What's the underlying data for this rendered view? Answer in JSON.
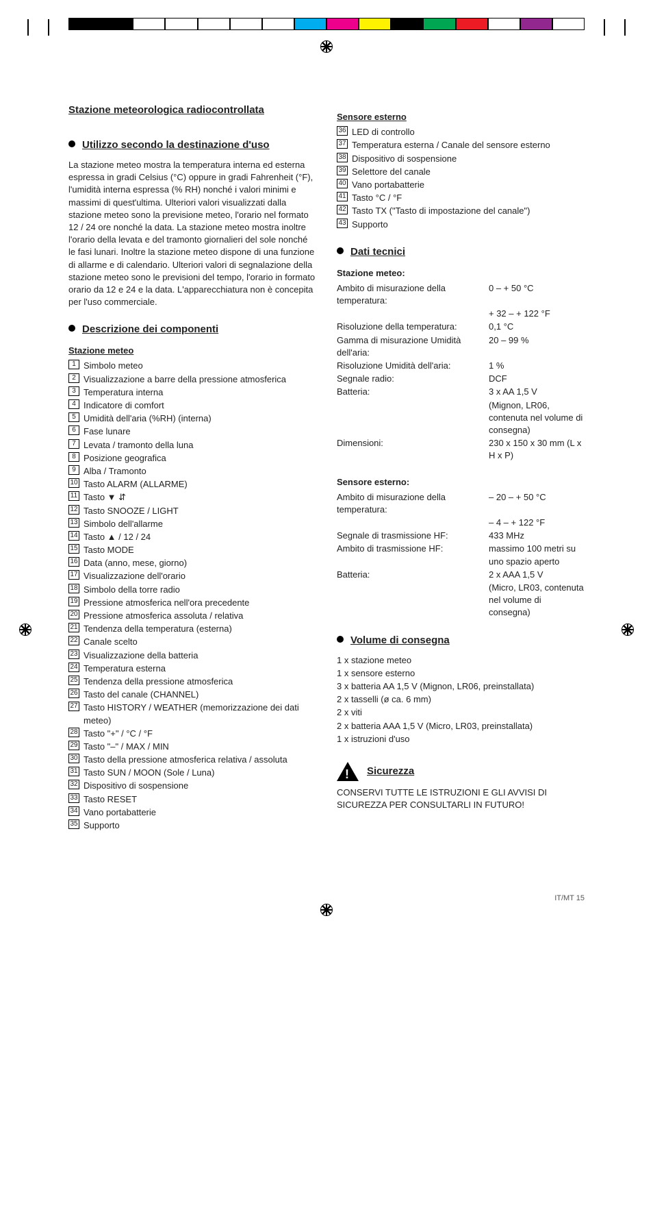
{
  "swatch_colors": [
    "#000000",
    "#000000",
    "#ffffff",
    "#ffffff",
    "#ffffff",
    "#ffffff",
    "#ffffff",
    "#00aeef",
    "#ec008c",
    "#fff200",
    "#000000",
    "#00a651",
    "#ed1c24",
    "#ffffff",
    "#92278f",
    "#ffffff"
  ],
  "title": "Stazione meteorologica radiocontrollata",
  "h_utilizzo": "Utilizzo secondo la destinazione d'uso",
  "p_utilizzo": "La stazione meteo mostra la temperatura interna ed esterna espressa in gradi Celsius (°C) oppure in gradi Fahrenheit (°F), l'umidità interna espressa (% RH) nonché i valori minimi e massimi di quest'ultima. Ulteriori valori visualizzati dalla stazione meteo sono la previsione meteo, l'orario nel formato 12 / 24 ore nonché la data. La stazione meteo mostra inoltre l'orario della levata e del tramonto giornalieri del sole nonché le fasi lunari. Inoltre la stazione meteo dispone di una funzione di allarme e di calendario. Ulteriori valori di segnalazione della stazione meteo sono le previsioni del tempo, l'orario in formato orario da 12 e 24 e la data. L'apparecchiatura non è concepita per l'uso commerciale.",
  "h_descr": "Descrizione dei componenti",
  "sub_stazione": "Stazione meteo",
  "sub_sensore": "Sensore esterno",
  "comp": {
    "c1": "Simbolo meteo",
    "c2": "Visualizzazione a barre della pressione atmosferica",
    "c3": "Temperatura interna",
    "c4": "Indicatore di comfort",
    "c5": "Umidità dell'aria (%RH) (interna)",
    "c6": "Fase lunare",
    "c7": "Levata / tramonto della luna",
    "c8": "Posizione geografica",
    "c9": "Alba / Tramonto",
    "c10": "Tasto ALARM (ALLARME)",
    "c11": "Tasto ▼ ⇵",
    "c12": "Tasto SNOOZE / LIGHT",
    "c13": "Simbolo dell'allarme",
    "c14": "Tasto ▲ / 12 / 24",
    "c15": "Tasto MODE",
    "c16": "Data (anno, mese, giorno)",
    "c17": "Visualizzazione dell'orario",
    "c18": "Simbolo della torre radio",
    "c19": "Pressione atmosferica nell'ora precedente",
    "c20": "Pressione atmosferica assoluta / relativa",
    "c21": "Tendenza della temperatura (esterna)",
    "c22": "Canale scelto",
    "c23": "Visualizzazione della batteria",
    "c24": "Temperatura esterna",
    "c25": "Tendenza della pressione atmosferica",
    "c26": "Tasto del canale (CHANNEL)",
    "c27": "Tasto HISTORY / WEATHER (memorizzazione dei dati meteo)",
    "c28": "Tasto \"+\" / °C / °F",
    "c29": "Tasto \"–\" / MAX / MIN",
    "c30": "Tasto della pressione atmosferica relativa / assoluta",
    "c31": "Tasto SUN / MOON (Sole / Luna)",
    "c32": "Dispositivo di sospensione",
    "c33": "Tasto RESET",
    "c34": "Vano portabatterie",
    "c35": "Supporto",
    "c36": "LED di controllo",
    "c37": "Temperatura esterna / Canale del sensore esterno",
    "c38": "Dispositivo di sospensione",
    "c39": "Selettore del canale",
    "c40": "Vano portabatterie",
    "c41": "Tasto °C / °F",
    "c42": "Tasto TX (\"Tasto di impostazione del canale\")",
    "c43": "Supporto"
  },
  "h_dati": "Dati tecnici",
  "sub_stazione2": "Stazione meteo:",
  "sp": {
    "k1": "Ambito di misurazione della temperatura:",
    "v1": "0 – + 50 °C",
    "v1b": "+ 32 – + 122 °F",
    "k2": "Risoluzione della temperatura:",
    "v2": "0,1 °C",
    "k3": "Gamma di misurazione Umidità dell'aria:",
    "v3": "20 – 99 %",
    "k4": "Risoluzione Umidità dell'aria:",
    "v4": "1 %",
    "k5": "Segnale radio:",
    "v5": "DCF",
    "k6": "Batteria:",
    "v6": "3 x AA 1,5 V",
    "v6b": "(Mignon, LR06, contenuta nel volume di consegna)",
    "k7": "Dimensioni:",
    "v7": "230 x 150 x 30 mm (L x H x P)"
  },
  "sub_sensore2": "Sensore esterno:",
  "se": {
    "k1": "Ambito di misurazione della temperatura:",
    "v1": "– 20 – + 50 °C",
    "v1b": "– 4 – + 122 °F",
    "k2": "Segnale di trasmissione HF:",
    "v2": "433 MHz",
    "k3": "Ambito di trasmissione HF:",
    "v3": "massimo 100 metri su uno spazio aperto",
    "k4": "Batteria:",
    "v4": "2 x AAA 1,5 V",
    "v4b": "(Micro, LR03, contenuta nel volume di consegna)"
  },
  "h_volume": "Volume di consegna",
  "vol": {
    "i1": "1 x  stazione meteo",
    "i2": "1 x  sensore esterno",
    "i3": "3 x  batteria AA 1,5 V (Mignon, LR06, preinstallata)",
    "i4": "2 x  tasselli (ø ca. 6 mm)",
    "i5": "2 x  viti",
    "i6": "2 x  batteria AAA 1,5 V (Micro, LR03, preinstallata)",
    "i7": "1 x  istruzioni d'uso"
  },
  "h_sicurezza": "Sicurezza",
  "p_sicurezza": "CONSERVI TUTTE LE ISTRUZIONI E GLI AVVISI DI SICUREZZA PER CONSULTARLI IN FUTURO!",
  "footer": "IT/MT    15"
}
